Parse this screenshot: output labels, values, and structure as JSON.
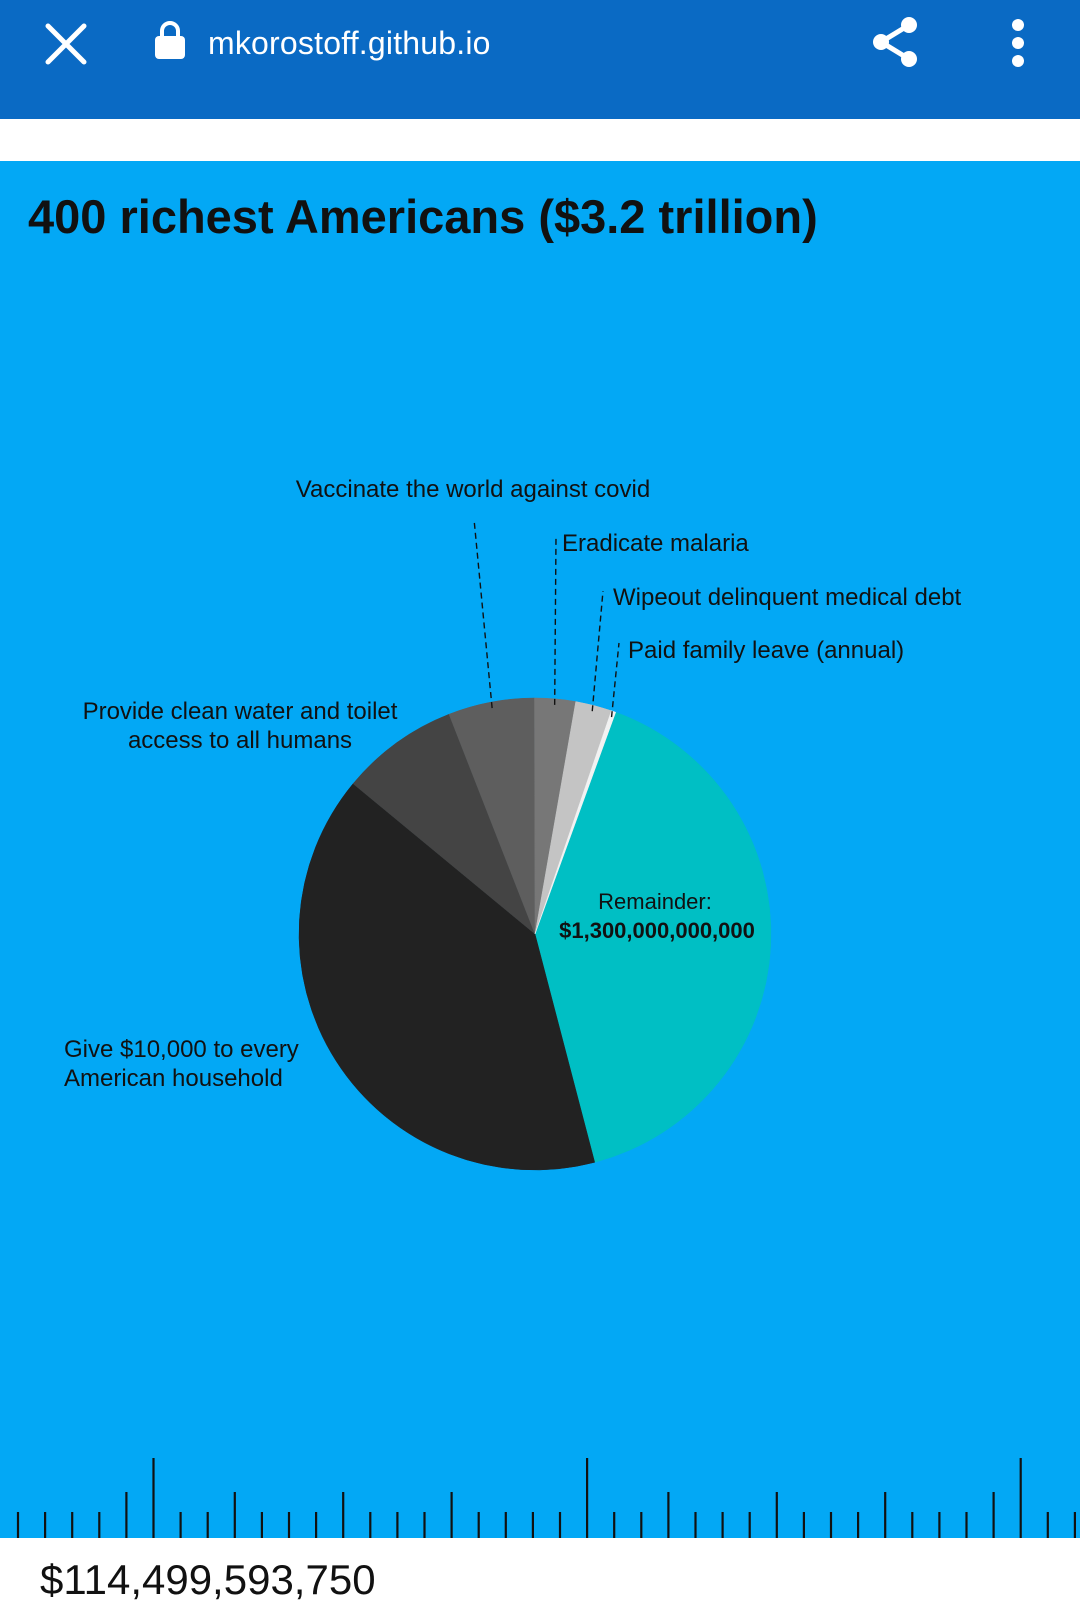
{
  "browser": {
    "url": "mkorostoff.github.io",
    "icons": [
      "close-icon",
      "lock-icon",
      "share-icon",
      "more-vert-icon"
    ],
    "bar_color": "#0a6ac4"
  },
  "colors": {
    "background": "#03a8f5",
    "remainder": "#00bfc4",
    "text": "#111111"
  },
  "chart_data": {
    "type": "pie",
    "title": "400 richest Americans ($3.2 trillion)",
    "total": 3200000000000,
    "slices": [
      {
        "label": "Remainder:",
        "value_label": "$1,300,000,000,000",
        "value": 1300000000000,
        "color": "#00bfc4"
      },
      {
        "label": "Give $10,000 to every American household",
        "value": 1290000000000,
        "color": "#222222"
      },
      {
        "label": "Provide clean water and toilet access to all humans",
        "value": 260000000000,
        "color": "#444444"
      },
      {
        "label": "Vaccinate the world against covid",
        "value": 190000000000,
        "color": "#5e5e5e"
      },
      {
        "label": "Eradicate malaria",
        "value": 90000000000,
        "color": "#777777"
      },
      {
        "label": "Wipeout delinquent medical debt",
        "value": 80000000000,
        "color": "#c4c4c4"
      },
      {
        "label": "Paid family leave (annual)",
        "value": 10000000000,
        "color": "#f2f2f2"
      }
    ]
  },
  "footer": {
    "amount": "$114,499,593,750"
  }
}
